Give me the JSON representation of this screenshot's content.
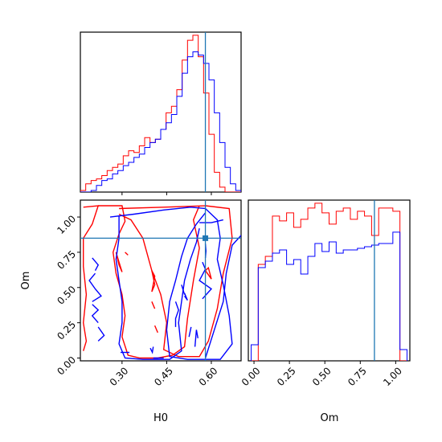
{
  "chart_data": [
    {
      "type": "histogram",
      "panel": "H0 marginal",
      "xlim": [
        0.16,
        0.7
      ],
      "xticks": [
        0.3,
        0.45,
        0.6
      ],
      "yticks": [],
      "truth_line": 0.58,
      "colors": {
        "red": "#ff0000",
        "blue": "#0000ff",
        "truth": "#1f77b4"
      },
      "bin_edges": [
        0.16,
        0.178,
        0.196,
        0.214,
        0.232,
        0.25,
        0.268,
        0.286,
        0.304,
        0.322,
        0.34,
        0.358,
        0.376,
        0.394,
        0.412,
        0.43,
        0.448,
        0.466,
        0.484,
        0.502,
        0.52,
        0.538,
        0.556,
        0.574,
        0.592,
        0.61,
        0.628,
        0.646,
        0.664,
        0.682,
        0.7
      ],
      "series": [
        {
          "values": [
            1,
            5,
            7,
            8,
            10,
            13,
            15,
            17,
            22,
            25,
            24,
            28,
            33,
            30,
            32,
            38,
            48,
            52,
            62,
            80,
            92,
            95,
            82,
            60,
            35,
            12,
            3,
            0,
            0,
            0
          ]
        },
        {
          "values": [
            0,
            0,
            1,
            4,
            7,
            8,
            11,
            13,
            16,
            18,
            21,
            23,
            27,
            30,
            32,
            38,
            42,
            47,
            58,
            72,
            82,
            85,
            83,
            78,
            68,
            48,
            30,
            15,
            5,
            1
          ]
        }
      ]
    },
    {
      "type": "contour",
      "panel": "H0 vs Om",
      "xlabel": "H0",
      "ylabel": "Om",
      "xlim": [
        0.16,
        0.7
      ],
      "ylim": [
        -0.02,
        1.12
      ],
      "xticks": [
        0.3,
        0.45,
        0.6
      ],
      "yticks": [
        0.0,
        0.25,
        0.5,
        0.75,
        1.0
      ],
      "truth": [
        0.58,
        0.85
      ],
      "series": [
        {
          "color": "#ff0000",
          "contours": [
            [
              [
                0.29,
                1.06
              ],
              [
                0.44,
                1.07
              ],
              [
                0.58,
                1.08
              ],
              [
                0.66,
                1.06
              ],
              [
                0.67,
                0.85
              ],
              [
                0.64,
                0.6
              ],
              [
                0.62,
                0.35
              ],
              [
                0.59,
                0.12
              ],
              [
                0.56,
                0.01
              ],
              [
                0.49,
                0.01
              ],
              [
                0.44,
                0.06
              ],
              [
                0.45,
                0.25
              ],
              [
                0.43,
                0.45
              ],
              [
                0.4,
                0.62
              ],
              [
                0.37,
                0.85
              ],
              [
                0.33,
                0.98
              ],
              [
                0.29,
                1.02
              ]
            ],
            [
              [
                0.22,
                1.08
              ],
              [
                0.3,
                1.08
              ],
              [
                0.31,
                0.97
              ],
              [
                0.29,
                0.88
              ],
              [
                0.27,
                0.75
              ],
              [
                0.28,
                0.6
              ],
              [
                0.3,
                0.45
              ],
              [
                0.31,
                0.3
              ],
              [
                0.3,
                0.15
              ],
              [
                0.32,
                0.02
              ],
              [
                0.36,
                0.0
              ],
              [
                0.42,
                0.0
              ],
              [
                0.47,
                0.02
              ],
              [
                0.51,
                0.08
              ],
              [
                0.52,
                0.28
              ],
              [
                0.54,
                0.55
              ],
              [
                0.56,
                0.78
              ],
              [
                0.54,
                0.98
              ],
              [
                0.56,
                1.08
              ]
            ],
            [
              [
                0.17,
                1.07
              ],
              [
                0.22,
                1.08
              ],
              [
                0.2,
                0.95
              ],
              [
                0.17,
                0.85
              ],
              [
                0.17,
                0.65
              ],
              [
                0.18,
                0.45
              ],
              [
                0.17,
                0.25
              ],
              [
                0.18,
                0.12
              ],
              [
                0.17,
                0.05
              ]
            ],
            [
              [
                0.28,
                0.75
              ],
              [
                0.29,
                0.68
              ],
              [
                0.3,
                0.61
              ],
              [
                0.29,
                0.66
              ],
              [
                0.28,
                0.75
              ]
            ],
            [
              [
                0.31,
                0.75
              ],
              [
                0.32,
                0.73
              ],
              [
                0.31,
                0.75
              ]
            ],
            [
              [
                0.4,
                0.62
              ],
              [
                0.41,
                0.52
              ],
              [
                0.4,
                0.47
              ],
              [
                0.41,
                0.58
              ],
              [
                0.4,
                0.62
              ]
            ],
            [
              [
                0.4,
                0.4
              ],
              [
                0.41,
                0.35
              ],
              [
                0.4,
                0.4
              ]
            ],
            [
              [
                0.41,
                0.23
              ],
              [
                0.42,
                0.18
              ],
              [
                0.41,
                0.23
              ]
            ],
            [
              [
                0.58,
                0.62
              ],
              [
                0.6,
                0.56
              ],
              [
                0.59,
                0.64
              ],
              [
                0.58,
                0.62
              ]
            ]
          ]
        },
        {
          "color": "#0000ff",
          "contours": [
            [
              [
                0.26,
                1.0
              ],
              [
                0.34,
                1.02
              ],
              [
                0.44,
                1.05
              ],
              [
                0.53,
                1.07
              ],
              [
                0.58,
                1.06
              ],
              [
                0.62,
                0.98
              ],
              [
                0.63,
                0.85
              ],
              [
                0.62,
                0.7
              ],
              [
                0.64,
                0.52
              ],
              [
                0.66,
                0.3
              ],
              [
                0.67,
                0.1
              ],
              [
                0.63,
                -0.01
              ],
              [
                0.52,
                -0.01
              ],
              [
                0.46,
                0.01
              ],
              [
                0.45,
                0.2
              ],
              [
                0.46,
                0.4
              ],
              [
                0.48,
                0.55
              ],
              [
                0.5,
                0.72
              ],
              [
                0.52,
                0.85
              ],
              [
                0.55,
                0.95
              ],
              [
                0.58,
                1.03
              ]
            ],
            [
              [
                0.29,
                1.01
              ],
              [
                0.29,
                0.85
              ],
              [
                0.28,
                0.7
              ],
              [
                0.29,
                0.55
              ],
              [
                0.3,
                0.4
              ],
              [
                0.3,
                0.25
              ],
              [
                0.29,
                0.1
              ],
              [
                0.31,
                0.0
              ],
              [
                0.37,
                -0.01
              ],
              [
                0.46,
                -0.01
              ],
              [
                0.5,
                0.05
              ],
              [
                0.49,
                0.25
              ],
              [
                0.5,
                0.4
              ],
              [
                0.51,
                0.55
              ],
              [
                0.53,
                0.7
              ],
              [
                0.55,
                0.82
              ],
              [
                0.56,
                0.92
              ]
            ],
            [
              [
                0.7,
                0.87
              ],
              [
                0.67,
                0.8
              ],
              [
                0.65,
                0.6
              ],
              [
                0.64,
                0.4
              ],
              [
                0.61,
                0.2
              ],
              [
                0.58,
                0.0
              ]
            ],
            [
              [
                0.57,
                0.68
              ],
              [
                0.58,
                0.63
              ],
              [
                0.56,
                0.55
              ],
              [
                0.6,
                0.49
              ],
              [
                0.57,
                0.42
              ]
            ],
            [
              [
                0.48,
                0.22
              ],
              [
                0.48,
                0.28
              ],
              [
                0.49,
                0.34
              ],
              [
                0.48,
                0.4
              ]
            ],
            [
              [
                0.5,
                0.52
              ],
              [
                0.51,
                0.45
              ],
              [
                0.5,
                0.52
              ]
            ],
            [
              [
                0.21,
                0.6
              ],
              [
                0.19,
                0.55
              ],
              [
                0.21,
                0.49
              ],
              [
                0.23,
                0.44
              ],
              [
                0.2,
                0.4
              ]
            ],
            [
              [
                0.22,
                0.25
              ],
              [
                0.2,
                0.3
              ],
              [
                0.22,
                0.34
              ],
              [
                0.2,
                0.38
              ]
            ],
            [
              [
                0.22,
                0.22
              ],
              [
                0.24,
                0.16
              ],
              [
                0.22,
                0.12
              ]
            ],
            [
              [
                0.21,
                0.62
              ],
              [
                0.22,
                0.66
              ],
              [
                0.2,
                0.71
              ]
            ],
            [
              [
                0.545,
                0.08
              ],
              [
                0.55,
                0.2
              ],
              [
                0.555,
                0.14
              ]
            ],
            [
              [
                0.51,
                0.44
              ],
              [
                0.52,
                0.41
              ],
              [
                0.51,
                0.46
              ]
            ],
            [
              [
                0.395,
                0.07
              ],
              [
                0.402,
                0.04
              ],
              [
                0.405,
                0.08
              ]
            ],
            [
              [
                0.525,
                0.15
              ],
              [
                0.532,
                0.22
              ]
            ],
            [
              [
                0.295,
                0.04
              ],
              [
                0.325,
                0.04
              ]
            ],
            [
              [
                0.405,
                0.0
              ],
              [
                0.44,
                0.0
              ]
            ],
            [
              [
                0.58,
                0.81
              ],
              [
                0.582,
                0.76
              ],
              [
                0.58,
                0.71
              ]
            ],
            [
              [
                0.56,
                0.96
              ],
              [
                0.6,
                0.96
              ],
              [
                0.64,
                0.98
              ]
            ]
          ]
        }
      ]
    },
    {
      "type": "histogram",
      "panel": "Om marginal",
      "xlabel": "Om",
      "xlim": [
        -0.04,
        1.1
      ],
      "xticks": [
        0.0,
        0.25,
        0.5,
        0.75,
        1.0
      ],
      "xtick_labels": [
        "0.00",
        "0.25",
        "0.50",
        "0.75",
        "1.00"
      ],
      "yticks": [],
      "truth_line": 0.85,
      "bin_edges": [
        -0.02,
        0.03,
        0.08,
        0.13,
        0.18,
        0.23,
        0.28,
        0.33,
        0.38,
        0.43,
        0.48,
        0.53,
        0.58,
        0.63,
        0.68,
        0.73,
        0.78,
        0.83,
        0.88,
        0.93,
        0.98,
        1.03,
        1.08
      ],
      "series": [
        {
          "values": [
            0,
            60,
            65,
            90,
            87,
            92,
            83,
            88,
            95,
            98,
            92,
            85,
            93,
            95,
            88,
            93,
            90,
            78,
            95,
            95,
            93,
            0
          ]
        },
        {
          "values": [
            10,
            58,
            62,
            67,
            69,
            60,
            63,
            54,
            65,
            73,
            68,
            74,
            67,
            69,
            69,
            70,
            71,
            72,
            73,
            73,
            80,
            7
          ]
        }
      ]
    }
  ],
  "panel_titles": {
    "h0_axis_label": "H0",
    "om_axis_label": "Om",
    "om_y_axis_label": "Om"
  },
  "ticks_text": {
    "h0": [
      "0.30",
      "0.45",
      "0.60"
    ],
    "om_y": [
      "0.00",
      "0.25",
      "0.50",
      "0.75",
      "1.00"
    ],
    "om_x": [
      "0.00",
      "0.25",
      "0.50",
      "0.75",
      "1.00"
    ]
  }
}
